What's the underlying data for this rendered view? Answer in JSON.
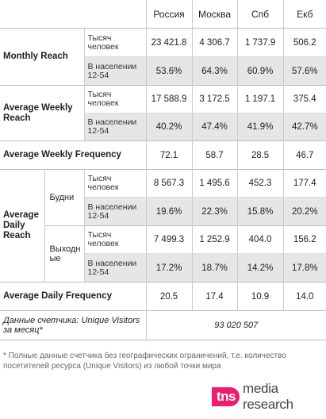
{
  "columns": [
    "Россия",
    "Москва",
    "Спб",
    "Екб"
  ],
  "units": {
    "thousand": "Тысяч человек",
    "population": "В населении 12-54"
  },
  "monthly_reach": {
    "label": "Monthly Reach",
    "thousand": [
      "23 421.8",
      "4 306.7",
      "1 737.9",
      "506.2"
    ],
    "population": [
      "53.6%",
      "64.3%",
      "60.9%",
      "57.6%"
    ]
  },
  "weekly_reach": {
    "label": "Average Weekly Reach",
    "thousand": [
      "17 588.9",
      "3 172.5",
      "1 197.1",
      "375.4"
    ],
    "population": [
      "40.2%",
      "47.4%",
      "41.9%",
      "42.7%"
    ]
  },
  "weekly_frequency": {
    "label": "Average Weekly Frequency",
    "values": [
      "72.1",
      "58.7",
      "28.5",
      "46.7"
    ]
  },
  "daily_reach": {
    "label": "Average Daily Reach",
    "weekdays": {
      "label": "Будни",
      "thousand": [
        "8 567.3",
        "1 495.6",
        "452.3",
        "177.4"
      ],
      "population": [
        "19.6%",
        "22.3%",
        "15.8%",
        "20.2%"
      ]
    },
    "weekends": {
      "label": "Выходные",
      "thousand": [
        "7 499.3",
        "1 252.9",
        "404.0",
        "156.2"
      ],
      "population": [
        "17.2%",
        "18.7%",
        "14.2%",
        "17.8%"
      ]
    }
  },
  "daily_frequency": {
    "label": "Average Daily Frequency",
    "values": [
      "20.5",
      "17.4",
      "10.9",
      "14.0"
    ]
  },
  "counter": {
    "label": "Данные счетчика: Unique Visitors за месяц*",
    "value": "93 020 507"
  },
  "footnote": "* Полные данные счетчика без географических ограничений, т.е. количество посетителей ресурса (Unique Visitors) из любой точки мира",
  "logo": {
    "mark": "tns",
    "text": "media research",
    "color": "#ec1c6e"
  }
}
